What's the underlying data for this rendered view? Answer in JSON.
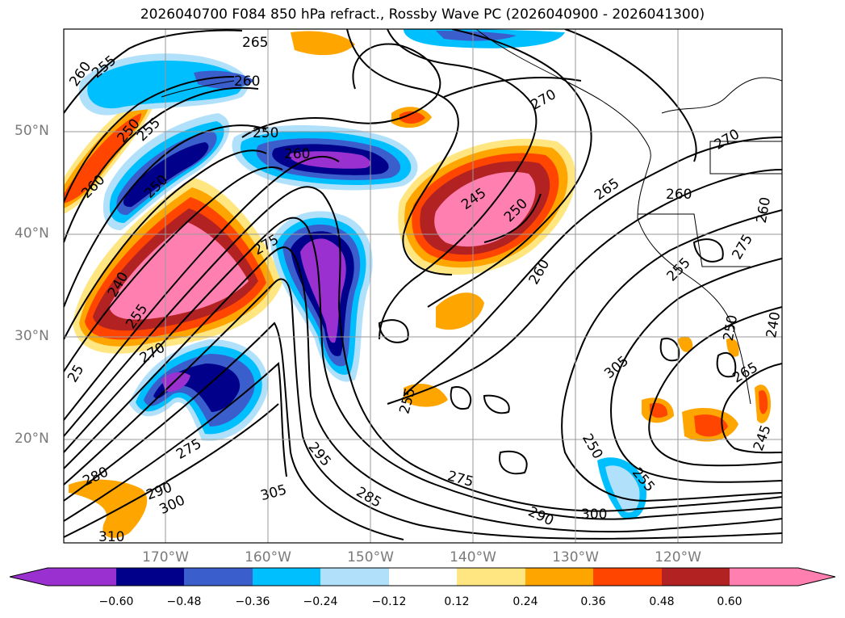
{
  "title": "2026040700 F084 850 hPa refract., Rossby Wave PC (2026040900 - 2026041300)",
  "lat_labels": [
    "50°N",
    "40°N",
    "30°N",
    "20°N"
  ],
  "lon_labels": [
    "170°W",
    "160°W",
    "150°W",
    "140°W",
    "130°W",
    "120°W"
  ],
  "colorbar": {
    "ticks": [
      "−0.60",
      "−0.48",
      "−0.36",
      "−0.24",
      "−0.12",
      "0.12",
      "0.24",
      "0.36",
      "0.48",
      "0.60"
    ],
    "colors": [
      "#9b30d0",
      "#00008b",
      "#3a5fcd",
      "#00bfff",
      "#b0e0fa",
      "#ffffff",
      "#ffe680",
      "#ffa500",
      "#ff4500",
      "#b22222",
      "#ff80b0"
    ],
    "extend": "both"
  },
  "contour_labels": [
    "260",
    "255",
    "265",
    "260",
    "250",
    "255",
    "260",
    "250",
    "260",
    "250",
    "250",
    "275",
    "240",
    "255",
    "270",
    "275",
    "280",
    "290",
    "300",
    "305",
    "310",
    "285",
    "295",
    "255",
    "275",
    "290",
    "300",
    "305",
    "265",
    "245",
    "260",
    "270",
    "260",
    "255",
    "250",
    "265",
    "245",
    "240",
    "250",
    "255",
    "275",
    "260",
    "270",
    "25"
  ]
}
